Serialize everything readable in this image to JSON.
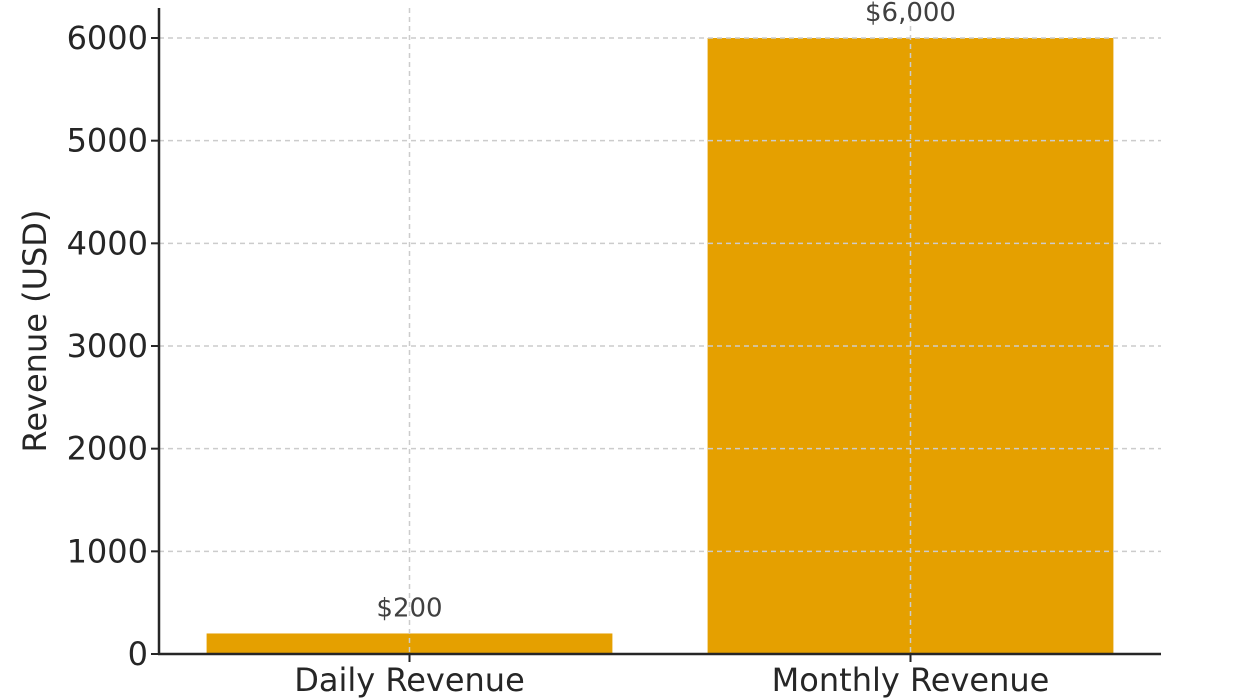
{
  "chart_data": {
    "type": "bar",
    "title": "",
    "xlabel": "",
    "ylabel": "Revenue (USD)",
    "categories": [
      "Daily Revenue",
      "Monthly Revenue"
    ],
    "values": [
      200,
      6000
    ],
    "value_labels": [
      "$200",
      "$6,000"
    ],
    "ylim": [
      0,
      6300
    ],
    "yticks": [
      0,
      1000,
      2000,
      3000,
      4000,
      5000,
      6000
    ],
    "ytick_labels": [
      "0",
      "1000",
      "2000",
      "3000",
      "4000",
      "5000",
      "6000"
    ],
    "grid": true,
    "grid_style": "dashed",
    "legend": null,
    "colors": {
      "bar": "#e5a000",
      "grid": "#cccccc",
      "axis": "#262626"
    }
  }
}
